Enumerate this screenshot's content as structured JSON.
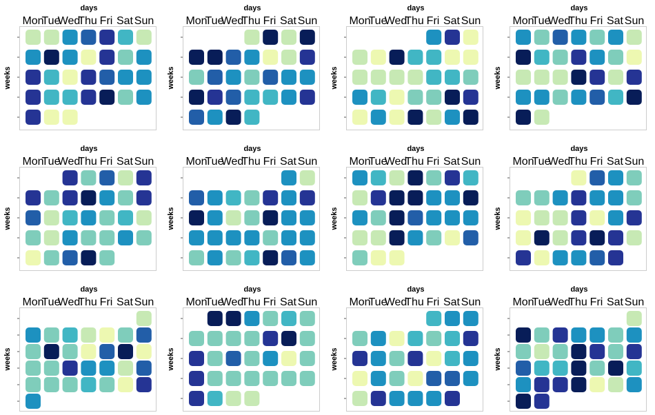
{
  "chart_data": {
    "type": "heatmap",
    "xlabel": "days",
    "ylabel": "weeks",
    "day_labels": [
      "Mon",
      "Tue",
      "Wed",
      "Thu",
      "Fri",
      "Sat",
      "Sun"
    ],
    "colormap": [
      "#edf8b1",
      "#c7e9b4",
      "#7fcdbb",
      "#41b6c4",
      "#1d91c0",
      "#225ea8",
      "#253494",
      "#081d58"
    ],
    "panels": [
      {
        "weeks": [
          [
            0.15,
            0.2,
            0.5,
            0.75,
            0.8,
            0.4,
            0.2
          ],
          [
            0.5,
            0.95,
            0.5,
            0.05,
            0.8,
            0.3,
            0.5
          ],
          [
            0.8,
            0.4,
            0.05,
            0.8,
            0.7,
            0.5,
            0.5
          ],
          [
            0.8,
            0.4,
            0.4,
            0.9,
            0.95,
            0.3,
            0.5
          ],
          [
            0.8,
            0.05,
            0.05,
            null,
            null,
            null,
            null
          ]
        ]
      },
      {
        "weeks": [
          [
            null,
            null,
            null,
            0.15,
            0.95,
            0.2,
            0.95
          ],
          [
            0.95,
            0.95,
            0.7,
            0.5,
            0.05,
            0.15,
            0.9
          ],
          [
            0.25,
            0.7,
            0.5,
            0.25,
            0.7,
            0.5,
            0.5
          ],
          [
            0.95,
            0.9,
            0.7,
            0.4,
            0.4,
            0.5,
            0.8
          ],
          [
            0.7,
            0.6,
            0.95,
            0.4,
            null,
            null,
            null
          ]
        ]
      },
      {
        "weeks": [
          [
            null,
            null,
            null,
            null,
            0.5,
            0.8,
            0.05
          ],
          [
            0.15,
            0.05,
            0.95,
            0.4,
            0.4,
            0.05,
            0.05
          ],
          [
            0.15,
            0.1,
            0.1,
            0.15,
            0.4,
            0.4,
            0.25
          ],
          [
            0.5,
            0.4,
            0.05,
            0.25,
            0.3,
            0.95,
            0.8
          ],
          [
            0.05,
            0.5,
            0.05,
            0.95,
            0.15,
            0.5,
            0.95
          ]
        ]
      },
      {
        "weeks": [
          [
            0.6,
            0.25,
            0.7,
            0.6,
            0.25,
            0.5,
            0.2
          ],
          [
            0.95,
            0.4,
            0.3,
            0.8,
            0.6,
            0.3,
            0.05
          ],
          [
            0.15,
            0.15,
            0.15,
            0.95,
            0.8,
            0.2,
            0.8
          ],
          [
            0.5,
            0.6,
            0.3,
            0.6,
            0.7,
            0.4,
            0.95
          ],
          [
            0.95,
            0.15,
            null,
            null,
            null,
            null,
            null
          ]
        ]
      },
      {
        "weeks": [
          [
            null,
            null,
            0.8,
            0.3,
            0.7,
            0.15,
            0.8
          ],
          [
            0.8,
            0.25,
            0.8,
            0.95,
            0.5,
            0.25,
            0.8
          ],
          [
            0.7,
            0.15,
            0.4,
            0.6,
            0.3,
            0.4,
            0.15
          ],
          [
            0.3,
            0.15,
            0.5,
            0.25,
            0.3,
            0.6,
            0.3
          ],
          [
            0.05,
            0.3,
            0.7,
            0.95,
            0.25,
            null,
            null
          ]
        ]
      },
      {
        "weeks": [
          [
            null,
            null,
            null,
            null,
            null,
            0.5,
            0.15
          ],
          [
            0.7,
            0.5,
            0.4,
            0.3,
            0.8,
            0.5,
            0.8
          ],
          [
            0.95,
            0.5,
            0.15,
            0.25,
            0.95,
            0.6,
            0.5
          ],
          [
            0.6,
            0.5,
            0.5,
            0.5,
            0.3,
            0.6,
            0.5
          ],
          [
            0.25,
            0.6,
            0.25,
            0.4,
            0.95,
            0.7,
            0.5
          ]
        ]
      },
      {
        "weeks": [
          [
            0.6,
            0.4,
            0.15,
            0.95,
            0.25,
            0.8,
            0.4
          ],
          [
            0.15,
            0.8,
            0.95,
            0.95,
            0.6,
            0.5,
            0.95
          ],
          [
            0.5,
            0.3,
            0.95,
            0.7,
            0.6,
            0.6,
            0.5
          ],
          [
            0.15,
            0.15,
            0.95,
            0.6,
            0.25,
            0.05,
            0.7
          ],
          [
            0.3,
            0.05,
            0.05,
            null,
            null,
            null,
            null
          ]
        ]
      },
      {
        "weeks": [
          [
            null,
            null,
            null,
            0.05,
            0.7,
            0.6,
            0.3
          ],
          [
            0.3,
            0.25,
            0.6,
            0.8,
            0.6,
            0.6,
            0.3
          ],
          [
            0.05,
            0.1,
            0.1,
            0.8,
            0.05,
            0.6,
            0.8
          ],
          [
            0.05,
            0.95,
            0.15,
            0.8,
            0.95,
            0.8,
            0.15
          ],
          [
            0.8,
            0.05,
            0.5,
            0.5,
            0.7,
            0.8,
            null
          ]
        ]
      },
      {
        "weeks": [
          [
            null,
            null,
            null,
            null,
            null,
            null,
            0.15
          ],
          [
            0.6,
            0.25,
            0.4,
            0.15,
            0.05,
            0.3,
            0.7
          ],
          [
            0.25,
            0.95,
            0.3,
            0.05,
            0.7,
            0.95,
            0.05
          ],
          [
            0.25,
            0.3,
            0.8,
            0.5,
            0.5,
            0.15,
            0.7
          ],
          [
            0.25,
            0.3,
            0.25,
            0.4,
            0.3,
            0.05,
            0.8
          ],
          [
            0.6,
            null,
            null,
            null,
            null,
            null,
            null
          ]
        ]
      },
      {
        "weeks": [
          [
            null,
            0.95,
            0.95,
            0.6,
            0.3,
            0.4,
            0.25
          ],
          [
            0.25,
            0.25,
            0.3,
            0.25,
            0.8,
            0.95,
            0.3
          ],
          [
            0.8,
            0.25,
            0.7,
            0.25,
            0.5,
            0.05,
            0.3
          ],
          [
            0.8,
            0.3,
            0.25,
            0.3,
            0.25,
            0.25,
            0.3
          ],
          [
            0.8,
            0.4,
            0.15,
            0.15,
            null,
            null,
            null
          ]
        ]
      },
      {
        "weeks": [
          [
            null,
            null,
            null,
            null,
            0.4,
            0.5,
            0.5
          ],
          [
            0.25,
            0.6,
            0.05,
            0.4,
            0.25,
            0.4,
            0.8
          ],
          [
            0.8,
            0.6,
            0.3,
            0.8,
            0.05,
            0.4,
            0.5
          ],
          [
            0.05,
            0.6,
            0.25,
            0.05,
            0.7,
            0.7,
            0.6
          ],
          [
            0.15,
            0.8,
            0.6,
            0.6,
            0.5,
            0.8,
            null
          ]
        ]
      },
      {
        "weeks": [
          [
            null,
            null,
            null,
            null,
            null,
            null,
            0.15
          ],
          [
            0.95,
            0.25,
            0.8,
            0.6,
            0.5,
            0.3,
            0.6
          ],
          [
            0.3,
            0.15,
            0.3,
            0.95,
            0.8,
            0.3,
            0.8
          ],
          [
            0.7,
            0.4,
            0.4,
            0.95,
            0.3,
            0.95,
            0.4
          ],
          [
            0.5,
            0.8,
            0.8,
            0.95,
            0.05,
            0.15,
            0.5
          ],
          [
            0.95,
            0.8,
            null,
            null,
            null,
            null,
            null
          ]
        ]
      }
    ]
  }
}
